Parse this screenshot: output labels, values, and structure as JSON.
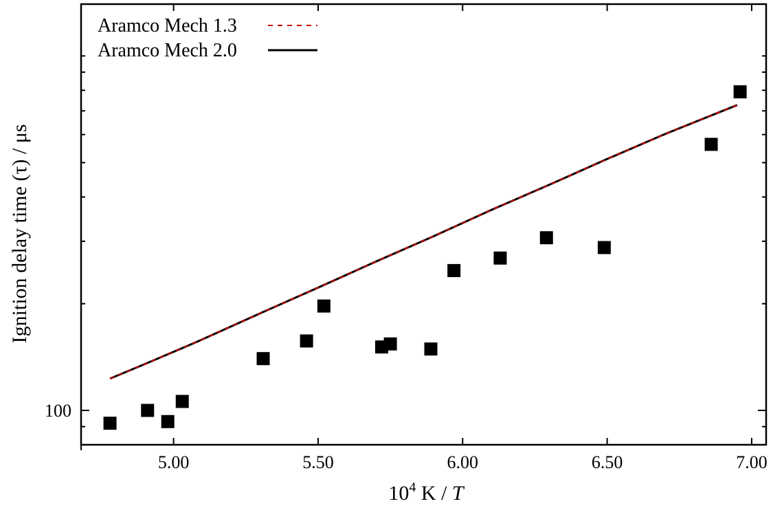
{
  "chart_data": {
    "type": "scatter",
    "xlabel": "10^4 K / T",
    "ylabel": "Ignition delay time (τ) / μs",
    "x_ticks": [
      5.0,
      5.5,
      6.0,
      6.5,
      7.0
    ],
    "x_tick_labels": [
      "5.00",
      "5.50",
      "6.00",
      "6.50",
      "7.00"
    ],
    "xlim": [
      4.68,
      7.05
    ],
    "y_scale": "log",
    "y_ticks": [
      100
    ],
    "y_tick_labels": [
      "100"
    ],
    "ylim": [
      80,
      1400
    ],
    "grid": false,
    "legend_position": "top-left",
    "series": [
      {
        "name": "Aramco Mech 1.3",
        "kind": "line",
        "style": "dashed",
        "color": "#cc0000",
        "x": [
          4.78,
          4.9,
          5.08,
          5.3,
          5.5,
          5.7,
          5.9,
          6.1,
          6.3,
          6.5,
          6.7,
          6.95
        ],
        "y": [
          123,
          135,
          156,
          188,
          222,
          263,
          310,
          368,
          433,
          512,
          602,
          727
        ]
      },
      {
        "name": "Aramco Mech 2.0",
        "kind": "line",
        "style": "solid",
        "color": "#000000",
        "x": [
          4.78,
          4.9,
          5.08,
          5.3,
          5.5,
          5.7,
          5.9,
          6.1,
          6.3,
          6.5,
          6.7,
          6.95
        ],
        "y": [
          123,
          135,
          156,
          188,
          222,
          263,
          310,
          368,
          433,
          512,
          602,
          727
        ]
      },
      {
        "name": "",
        "kind": "scatter",
        "marker": "square",
        "color": "#000000",
        "x": [
          4.78,
          4.91,
          4.98,
          5.03,
          5.31,
          5.46,
          5.52,
          5.72,
          5.75,
          5.89,
          5.97,
          6.13,
          6.29,
          6.49,
          6.86,
          6.96
        ],
        "y": [
          92,
          100,
          93,
          106,
          140,
          157,
          197,
          151,
          154,
          149,
          248,
          269,
          307,
          288,
          563,
          792
        ]
      }
    ]
  }
}
